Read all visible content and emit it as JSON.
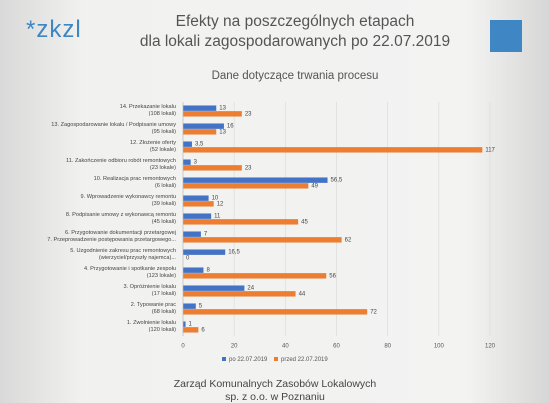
{
  "slide": {
    "logo": "*zkzl",
    "footer": [
      "Zarząd Komunalnych Zasobów Lokalowych",
      "sp. z o.o. w Poznaniu"
    ]
  },
  "chart_data": {
    "type": "hbar",
    "title": "Efekty na poszczególnych etapach\ndla lokali zagospodarowanych po 22.07.2019",
    "subtitle": "Dane dotyczące trwania procesu",
    "categories": [
      "14. Przekazanie lokalu\n(108 lokali)",
      "13. Zagospodarowanie lokalu / Podpisanie umowy\n(95 lokali)",
      "12. Złożenie oferty\n(52 lokale)",
      "11. Zakończenie odbioru robót remontowych\n(23 lokale)",
      "10. Realizacja prac remontowych\n(6 lokali)",
      "9. Wprowadzenie wykonawcy remontu\n(39 lokali)",
      "8. Podpisanie umowy z wykonawcą remontu\n(45 lokali)",
      "6. Przygotowanie dokumentacji przetargowej\n7. Przeprowadzenie postępowania przetargowego...",
      "5. Uzgodnienie zakresu prac remontowych\n(wierzyciel/przyszły najemca)...",
      "4. Przygotowanie i spotkanie zespołu\n(123 lokale)",
      "3. Opróżnienie lokalu\n(17 lokali)",
      "2. Typowanie prac\n(68 lokali)",
      "1. Zwolnienie lokalu\n(120 lokali)"
    ],
    "series": [
      {
        "name": "po 22.07.2019",
        "color": "#4472c4",
        "values": [
          13,
          16,
          3.5,
          3,
          56.5,
          10,
          11,
          7,
          16.5,
          8,
          24,
          5,
          1
        ],
        "value_labels": [
          "13",
          "16",
          "3,5",
          "3",
          "56,5",
          "10",
          "11",
          "7",
          "16,5",
          "8",
          "24",
          "5",
          "1"
        ]
      },
      {
        "name": "przed 22.07.2019",
        "color": "#ed7d31",
        "values": [
          23,
          13,
          117,
          23,
          49,
          12,
          45,
          62,
          0,
          56,
          44,
          72,
          6
        ],
        "value_labels": [
          "23",
          "13",
          "117",
          "23",
          "49",
          "12",
          "45",
          "62",
          "0",
          "56",
          "44",
          "72",
          "6"
        ]
      }
    ],
    "xlim": [
      0,
      120
    ],
    "xticks": [
      0,
      20,
      40,
      60,
      80,
      100,
      120
    ],
    "grid": true,
    "legend": "bottom"
  }
}
